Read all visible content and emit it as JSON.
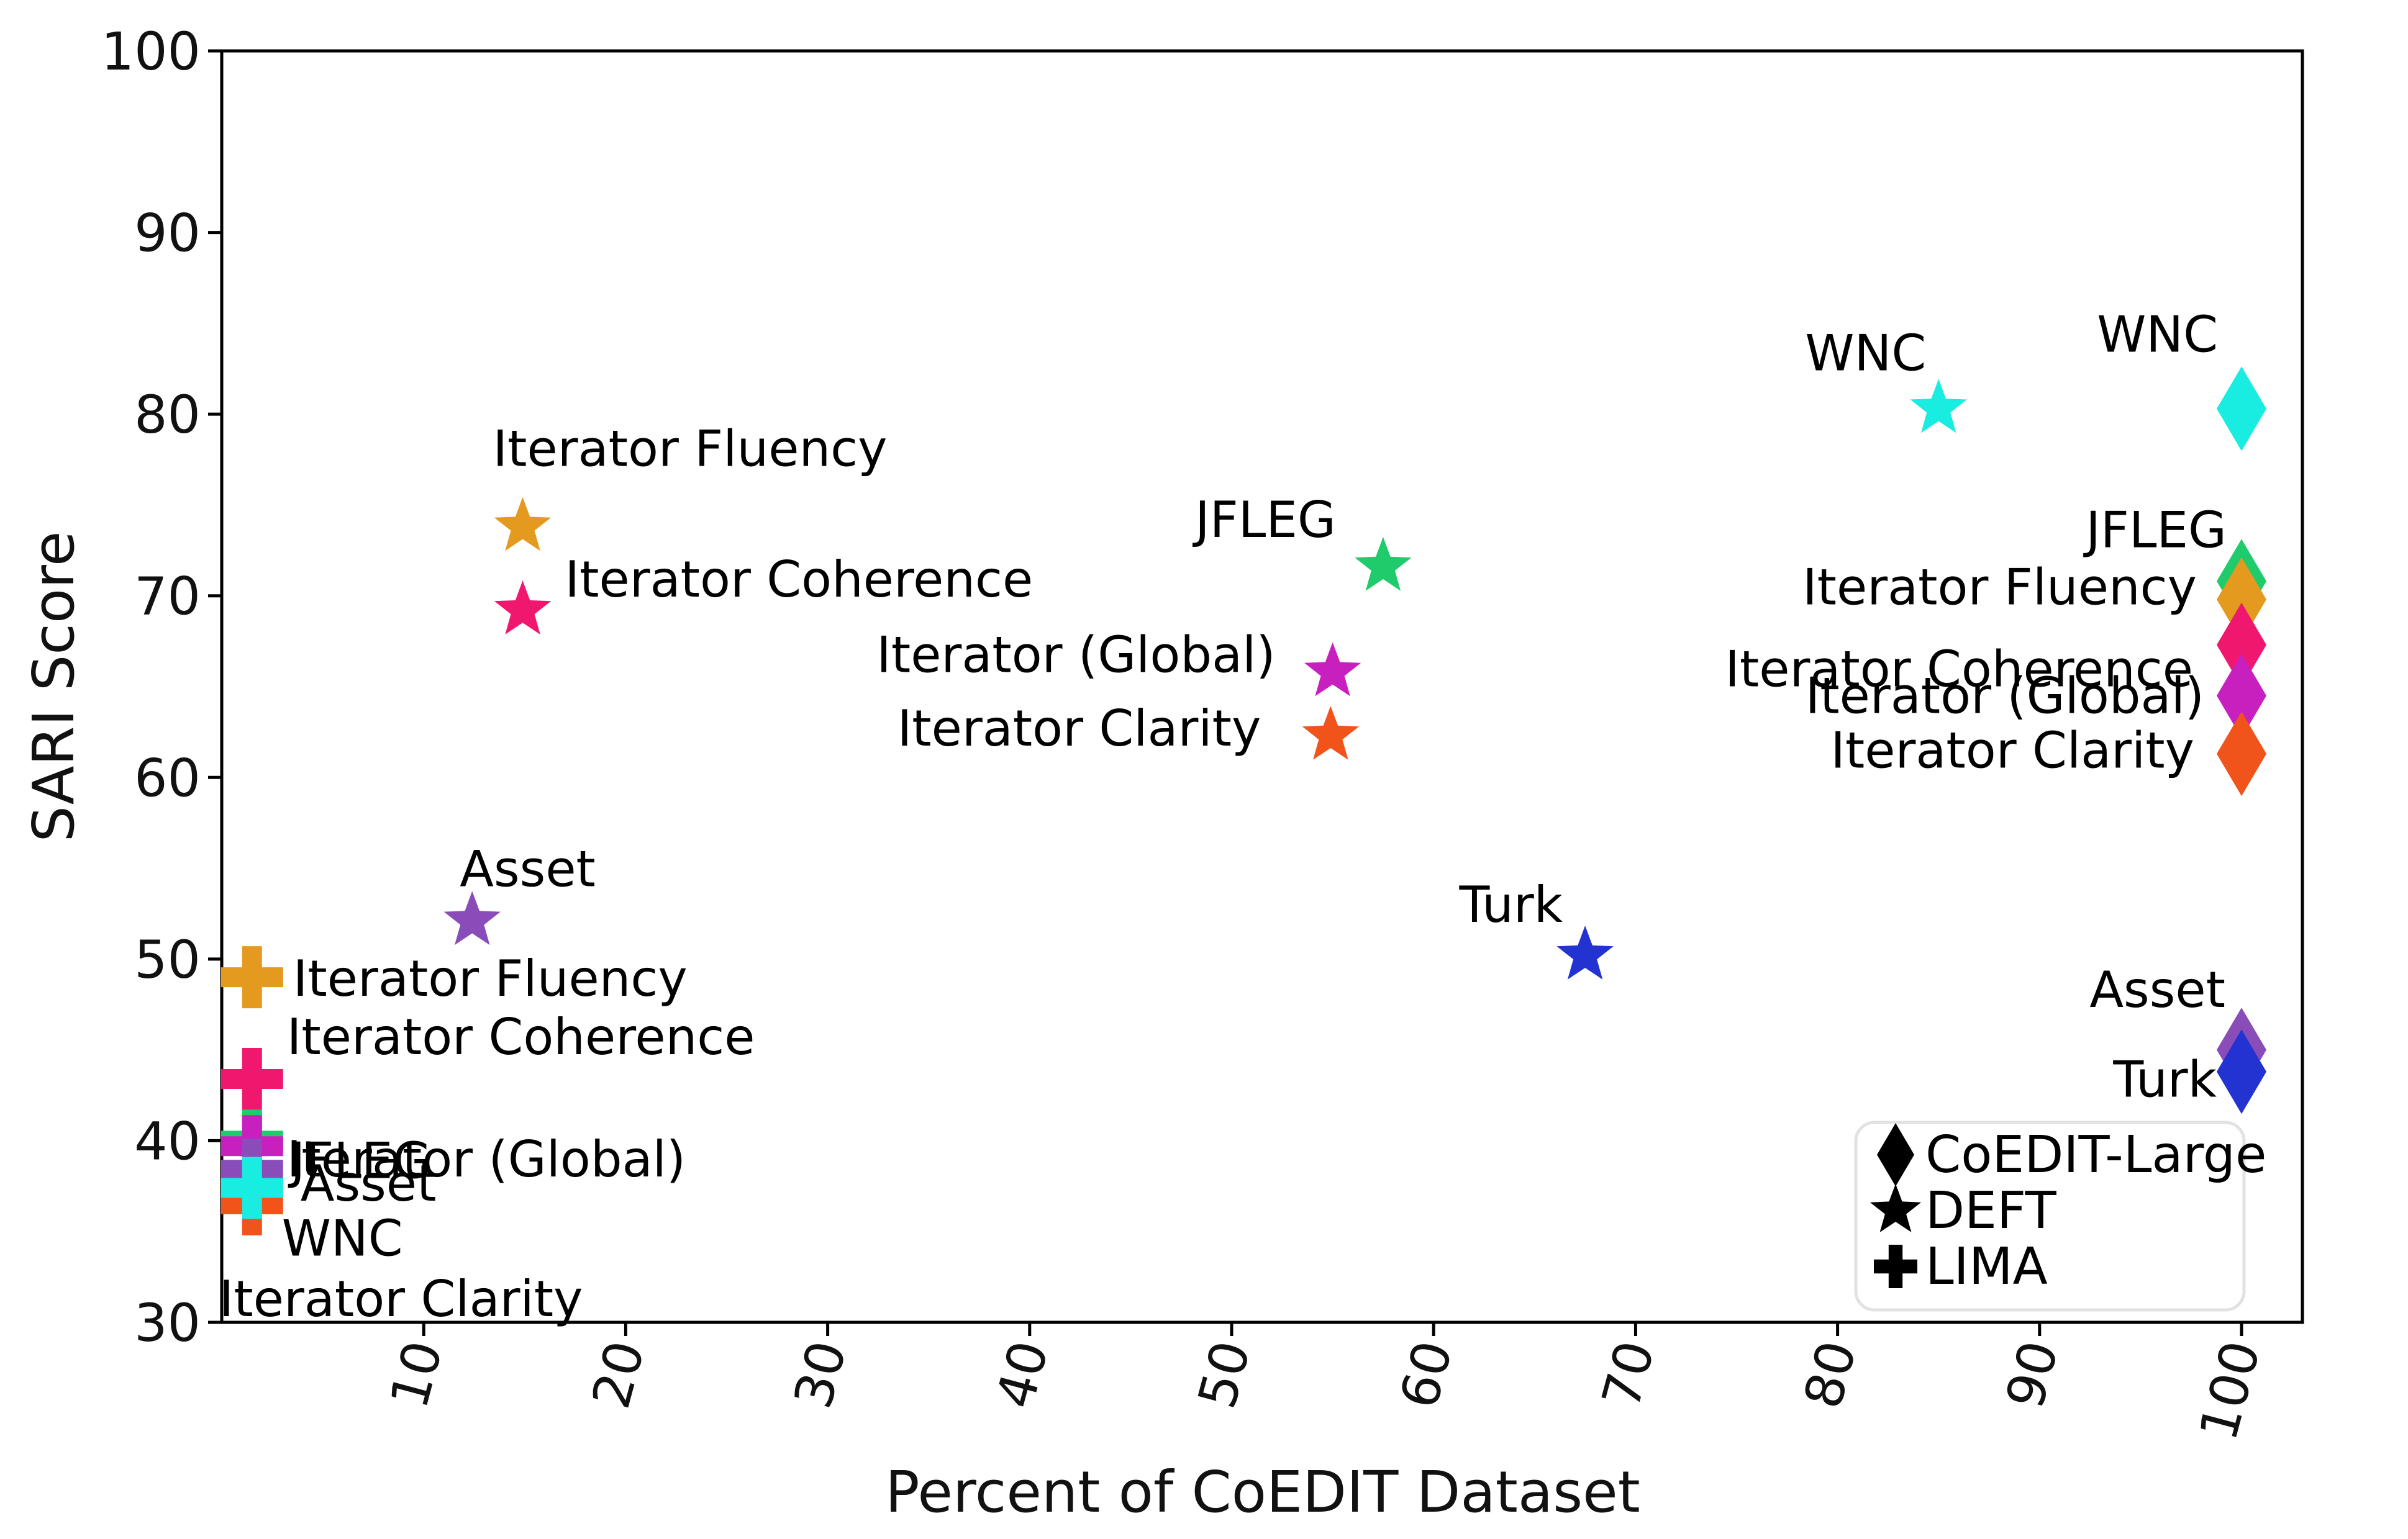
{
  "chart_data": {
    "type": "scatter",
    "title": "",
    "xlabel": "Percent of CoEDIT Dataset",
    "ylabel": "SARI Score",
    "xlim": [
      0,
      103
    ],
    "ylim": [
      30,
      100
    ],
    "xticks": [
      10,
      20,
      30,
      40,
      50,
      60,
      70,
      80,
      90,
      100
    ],
    "yticks": [
      30,
      40,
      50,
      60,
      70,
      80,
      90,
      100
    ],
    "grid": false,
    "legend": {
      "position": "bottom-right",
      "entries": [
        {
          "marker": "diamond",
          "label": "CoEDIT-Large"
        },
        {
          "marker": "star",
          "label": "DEFT"
        },
        {
          "marker": "plus",
          "label": "LIMA"
        }
      ]
    },
    "colors": {
      "Iterator Fluency": "#e39a1f",
      "Iterator Coherence": "#f0186e",
      "Iterator (Global)": "#c81fbf",
      "Iterator Clarity": "#f0541b",
      "JFLEG": "#1fcb6b",
      "WNC": "#19ece0",
      "Asset": "#8a4cb8",
      "Turk": "#2233d1"
    },
    "series": [
      {
        "name": "CoEDIT-Large",
        "marker": "diamond",
        "points": [
          {
            "dataset": "WNC",
            "x": 100,
            "y": 80.3
          },
          {
            "dataset": "JFLEG",
            "x": 100,
            "y": 70.8
          },
          {
            "dataset": "Iterator Fluency",
            "x": 100,
            "y": 69.8
          },
          {
            "dataset": "Iterator Coherence",
            "x": 100,
            "y": 67.3
          },
          {
            "dataset": "Iterator (Global)",
            "x": 100,
            "y": 64.5
          },
          {
            "dataset": "Iterator Clarity",
            "x": 100,
            "y": 61.3
          },
          {
            "dataset": "Asset",
            "x": 100,
            "y": 45.0
          },
          {
            "dataset": "Turk",
            "x": 100,
            "y": 43.8
          }
        ]
      },
      {
        "name": "DEFT",
        "marker": "star",
        "points": [
          {
            "dataset": "Iterator Fluency",
            "x": 14.9,
            "y": 73.8
          },
          {
            "dataset": "Iterator Coherence",
            "x": 14.9,
            "y": 69.2
          },
          {
            "dataset": "Asset",
            "x": 12.4,
            "y": 52.1
          },
          {
            "dataset": "JFLEG",
            "x": 57.5,
            "y": 71.6
          },
          {
            "dataset": "Iterator (Global)",
            "x": 55.0,
            "y": 65.8
          },
          {
            "dataset": "Iterator Clarity",
            "x": 54.9,
            "y": 62.3
          },
          {
            "dataset": "Turk",
            "x": 67.5,
            "y": 50.2
          },
          {
            "dataset": "WNC",
            "x": 85.0,
            "y": 80.3
          }
        ]
      },
      {
        "name": "LIMA",
        "marker": "plus",
        "points": [
          {
            "dataset": "Iterator Fluency",
            "x": 1.5,
            "y": 49.0
          },
          {
            "dataset": "Iterator Coherence",
            "x": 1.5,
            "y": 43.4
          },
          {
            "dataset": "JFLEG",
            "x": 1.5,
            "y": 40.0
          },
          {
            "dataset": "Iterator (Global)",
            "x": 1.5,
            "y": 39.7
          },
          {
            "dataset": "Asset",
            "x": 1.5,
            "y": 38.4
          },
          {
            "dataset": "Iterator Clarity",
            "x": 1.5,
            "y": 36.5
          },
          {
            "dataset": "WNC",
            "x": 1.5,
            "y": 37.4
          }
        ]
      }
    ],
    "annotations": [
      {
        "text": "Iterator Fluency",
        "series": "DEFT",
        "dataset": "Iterator Fluency"
      },
      {
        "text": "Iterator Coherence",
        "series": "DEFT",
        "dataset": "Iterator Coherence"
      },
      {
        "text": "Asset",
        "series": "DEFT",
        "dataset": "Asset"
      },
      {
        "text": "JFLEG",
        "series": "DEFT",
        "dataset": "JFLEG"
      },
      {
        "text": "Iterator (Global)",
        "series": "DEFT",
        "dataset": "Iterator (Global)"
      },
      {
        "text": "Iterator Clarity",
        "series": "DEFT",
        "dataset": "Iterator Clarity"
      },
      {
        "text": "Turk",
        "series": "DEFT",
        "dataset": "Turk"
      },
      {
        "text": "WNC",
        "series": "DEFT",
        "dataset": "WNC"
      },
      {
        "text": "WNC",
        "series": "CoEDIT-Large",
        "dataset": "WNC"
      },
      {
        "text": "JFLEG",
        "series": "CoEDIT-Large",
        "dataset": "JFLEG"
      },
      {
        "text": "Iterator Fluency",
        "series": "CoEDIT-Large",
        "dataset": "Iterator Fluency"
      },
      {
        "text": "Iterator Coherence",
        "series": "CoEDIT-Large",
        "dataset": "Iterator Coherence"
      },
      {
        "text": "Iterator (Global)",
        "series": "CoEDIT-Large",
        "dataset": "Iterator (Global)"
      },
      {
        "text": "Iterator Clarity",
        "series": "CoEDIT-Large",
        "dataset": "Iterator Clarity"
      },
      {
        "text": "Asset",
        "series": "CoEDIT-Large",
        "dataset": "Asset"
      },
      {
        "text": "Turk",
        "series": "CoEDIT-Large",
        "dataset": "Turk"
      },
      {
        "text": "Iterator Fluency",
        "series": "LIMA",
        "dataset": "Iterator Fluency"
      },
      {
        "text": "Iterator Coherence",
        "series": "LIMA",
        "dataset": "Iterator Coherence"
      },
      {
        "text": "Iterator (Global)",
        "series": "LIMA",
        "dataset": "Iterator (Global)"
      },
      {
        "text": "JFLEG",
        "series": "LIMA",
        "dataset": "JFLEG"
      },
      {
        "text": "Asset",
        "series": "LIMA",
        "dataset": "Asset"
      },
      {
        "text": "WNC",
        "series": "LIMA",
        "dataset": "WNC"
      },
      {
        "text": "Iterator Clarity",
        "series": "LIMA",
        "dataset": "Iterator Clarity"
      }
    ]
  }
}
